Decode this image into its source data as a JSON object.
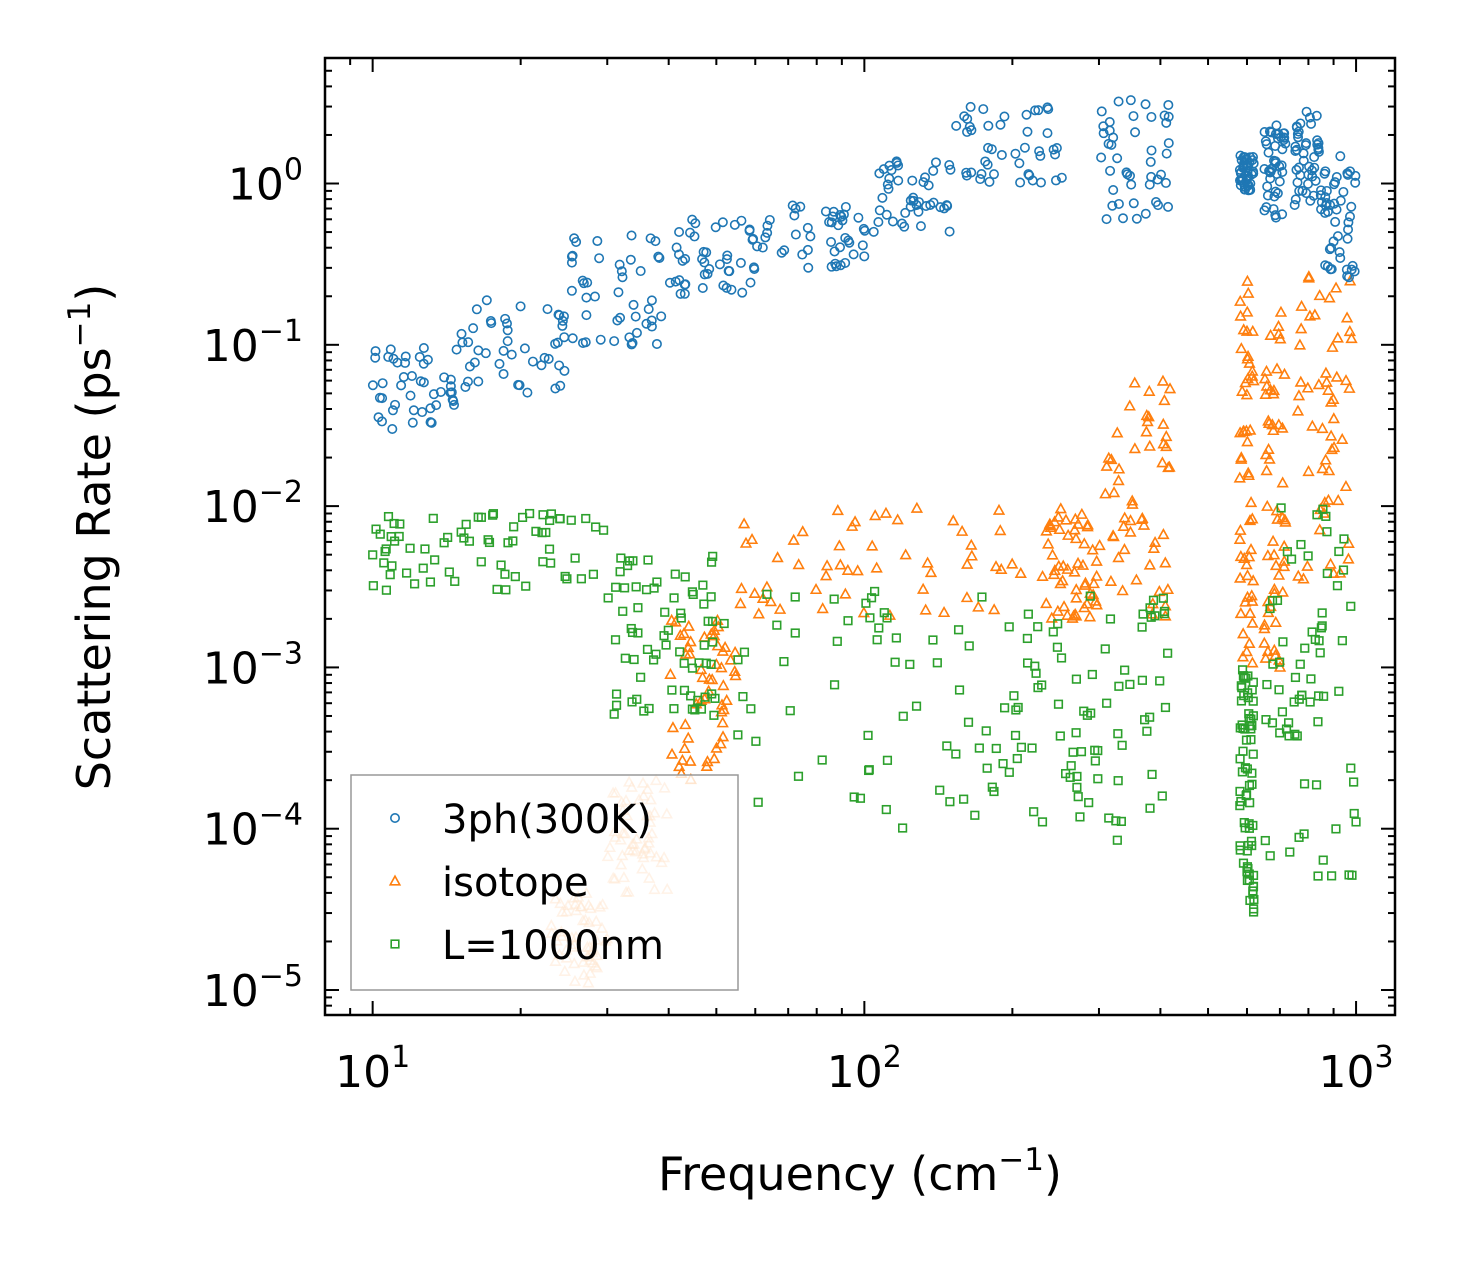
{
  "chart_data": {
    "type": "scatter",
    "xscale": "log",
    "yscale": "log",
    "xlim": [
      8,
      1200
    ],
    "ylim": [
      7e-06,
      6
    ],
    "xlabel": "Frequency (cm",
    "xlabel_exp": "−1",
    "xlabel_end": ")",
    "ylabel": "Scattering Rate (ps",
    "ylabel_exp": "−1",
    "ylabel_end": ")",
    "xticks": [
      {
        "value": 10,
        "base": "10",
        "exp": "1"
      },
      {
        "value": 100,
        "base": "10",
        "exp": "2"
      },
      {
        "value": 1000,
        "base": "10",
        "exp": "3"
      }
    ],
    "yticks": [
      {
        "value": 1e-05,
        "base": "10",
        "exp": "−5"
      },
      {
        "value": 0.0001,
        "base": "10",
        "exp": "−4"
      },
      {
        "value": 0.001,
        "base": "10",
        "exp": "−3"
      },
      {
        "value": 0.01,
        "base": "10",
        "exp": "−2"
      },
      {
        "value": 0.1,
        "base": "10",
        "exp": "−1"
      },
      {
        "value": 1,
        "base": "10",
        "exp": "0"
      }
    ],
    "legend_position": "lower-left",
    "series": [
      {
        "name": "3ph(300K)",
        "marker": "circle",
        "color": "#1f77b4",
        "clusters": [
          {
            "x": [
              10,
              15
            ],
            "y": [
              0.03,
              0.1
            ]
          },
          {
            "x": [
              15,
              25
            ],
            "y": [
              0.05,
              0.2
            ]
          },
          {
            "x": [
              25,
              40
            ],
            "y": [
              0.1,
              0.5
            ]
          },
          {
            "x": [
              40,
              60
            ],
            "y": [
              0.2,
              0.6
            ]
          },
          {
            "x": [
              60,
              100
            ],
            "y": [
              0.3,
              0.8
            ]
          },
          {
            "x": [
              100,
              150
            ],
            "y": [
              0.5,
              1.5
            ]
          },
          {
            "x": [
              150,
              260
            ],
            "y": [
              1.0,
              3.0
            ]
          },
          {
            "x": [
              300,
              420
            ],
            "y": [
              0.6,
              3.5
            ]
          },
          {
            "x": [
              580,
              620
            ],
            "y": [
              0.9,
              1.5
            ]
          },
          {
            "x": [
              650,
              720
            ],
            "y": [
              0.6,
              2.5
            ]
          },
          {
            "x": [
              750,
              850
            ],
            "y": [
              0.6,
              2.8
            ]
          },
          {
            "x": [
              850,
              1000
            ],
            "y": [
              0.25,
              1.5
            ]
          }
        ]
      },
      {
        "name": "isotope",
        "marker": "triangle",
        "color": "#ff7f0e",
        "clusters": [
          {
            "x": [
              23,
              30
            ],
            "y": [
              1.1e-05,
              4e-05
            ]
          },
          {
            "x": [
              30,
              40
            ],
            "y": [
              4e-05,
              0.0002
            ]
          },
          {
            "x": [
              40,
              55
            ],
            "y": [
              0.0002,
              0.002
            ]
          },
          {
            "x": [
              55,
              210
            ],
            "y": [
              0.002,
              0.01
            ]
          },
          {
            "x": [
              230,
              300
            ],
            "y": [
              0.002,
              0.01
            ]
          },
          {
            "x": [
              300,
              420
            ],
            "y": [
              0.002,
              0.06
            ]
          },
          {
            "x": [
              580,
              620
            ],
            "y": [
              0.001,
              0.3
            ]
          },
          {
            "x": [
              650,
              720
            ],
            "y": [
              0.001,
              0.2
            ]
          },
          {
            "x": [
              760,
              980
            ],
            "y": [
              0.003,
              0.3
            ]
          }
        ]
      },
      {
        "name": "L=1000nm",
        "marker": "square",
        "color": "#2ca02c",
        "clusters": [
          {
            "x": [
              10,
              30
            ],
            "y": [
              0.003,
              0.009
            ]
          },
          {
            "x": [
              30,
              50
            ],
            "y": [
              0.0005,
              0.005
            ]
          },
          {
            "x": [
              50,
              210
            ],
            "y": [
              0.0001,
              0.003
            ]
          },
          {
            "x": [
              210,
              420
            ],
            "y": [
              8e-05,
              0.003
            ]
          },
          {
            "x": [
              580,
              620
            ],
            "y": [
              3e-05,
              0.001
            ]
          },
          {
            "x": [
              650,
              1000
            ],
            "y": [
              5e-05,
              0.01
            ]
          }
        ]
      }
    ]
  }
}
